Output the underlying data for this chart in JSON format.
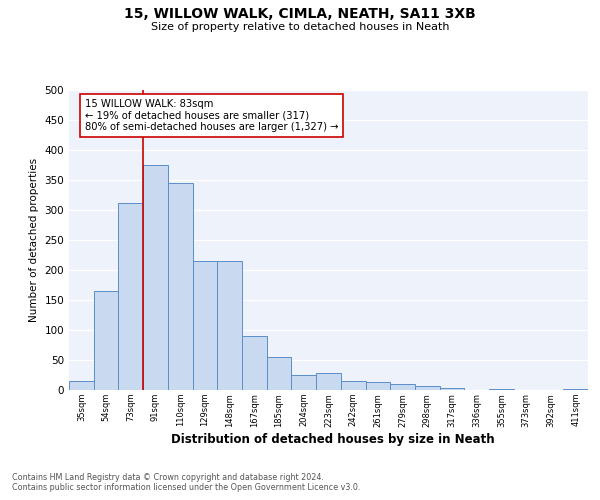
{
  "title": "15, WILLOW WALK, CIMLA, NEATH, SA11 3XB",
  "subtitle": "Size of property relative to detached houses in Neath",
  "xlabel": "Distribution of detached houses by size in Neath",
  "ylabel": "Number of detached properties",
  "bar_color": "#c9d9f0",
  "bar_edge_color": "#5b8fc9",
  "bin_labels": [
    "35sqm",
    "54sqm",
    "73sqm",
    "91sqm",
    "110sqm",
    "129sqm",
    "148sqm",
    "167sqm",
    "185sqm",
    "204sqm",
    "223sqm",
    "242sqm",
    "261sqm",
    "279sqm",
    "298sqm",
    "317sqm",
    "336sqm",
    "355sqm",
    "373sqm",
    "392sqm",
    "411sqm"
  ],
  "bar_heights": [
    15,
    165,
    312,
    375,
    345,
    215,
    215,
    90,
    55,
    25,
    28,
    15,
    13,
    10,
    7,
    3,
    0,
    2,
    0,
    0,
    1
  ],
  "vline_x": 2.5,
  "annotation_title": "15 WILLOW WALK: 83sqm",
  "annotation_line1": "← 19% of detached houses are smaller (317)",
  "annotation_line2": "80% of semi-detached houses are larger (1,327) →",
  "vline_color": "#cc0000",
  "annotation_box_color": "#cc0000",
  "ylim": [
    0,
    500
  ],
  "yticks": [
    0,
    50,
    100,
    150,
    200,
    250,
    300,
    350,
    400,
    450,
    500
  ],
  "footnote1": "Contains HM Land Registry data © Crown copyright and database right 2024.",
  "footnote2": "Contains public sector information licensed under the Open Government Licence v3.0.",
  "plot_bg_color": "#eef2fb"
}
